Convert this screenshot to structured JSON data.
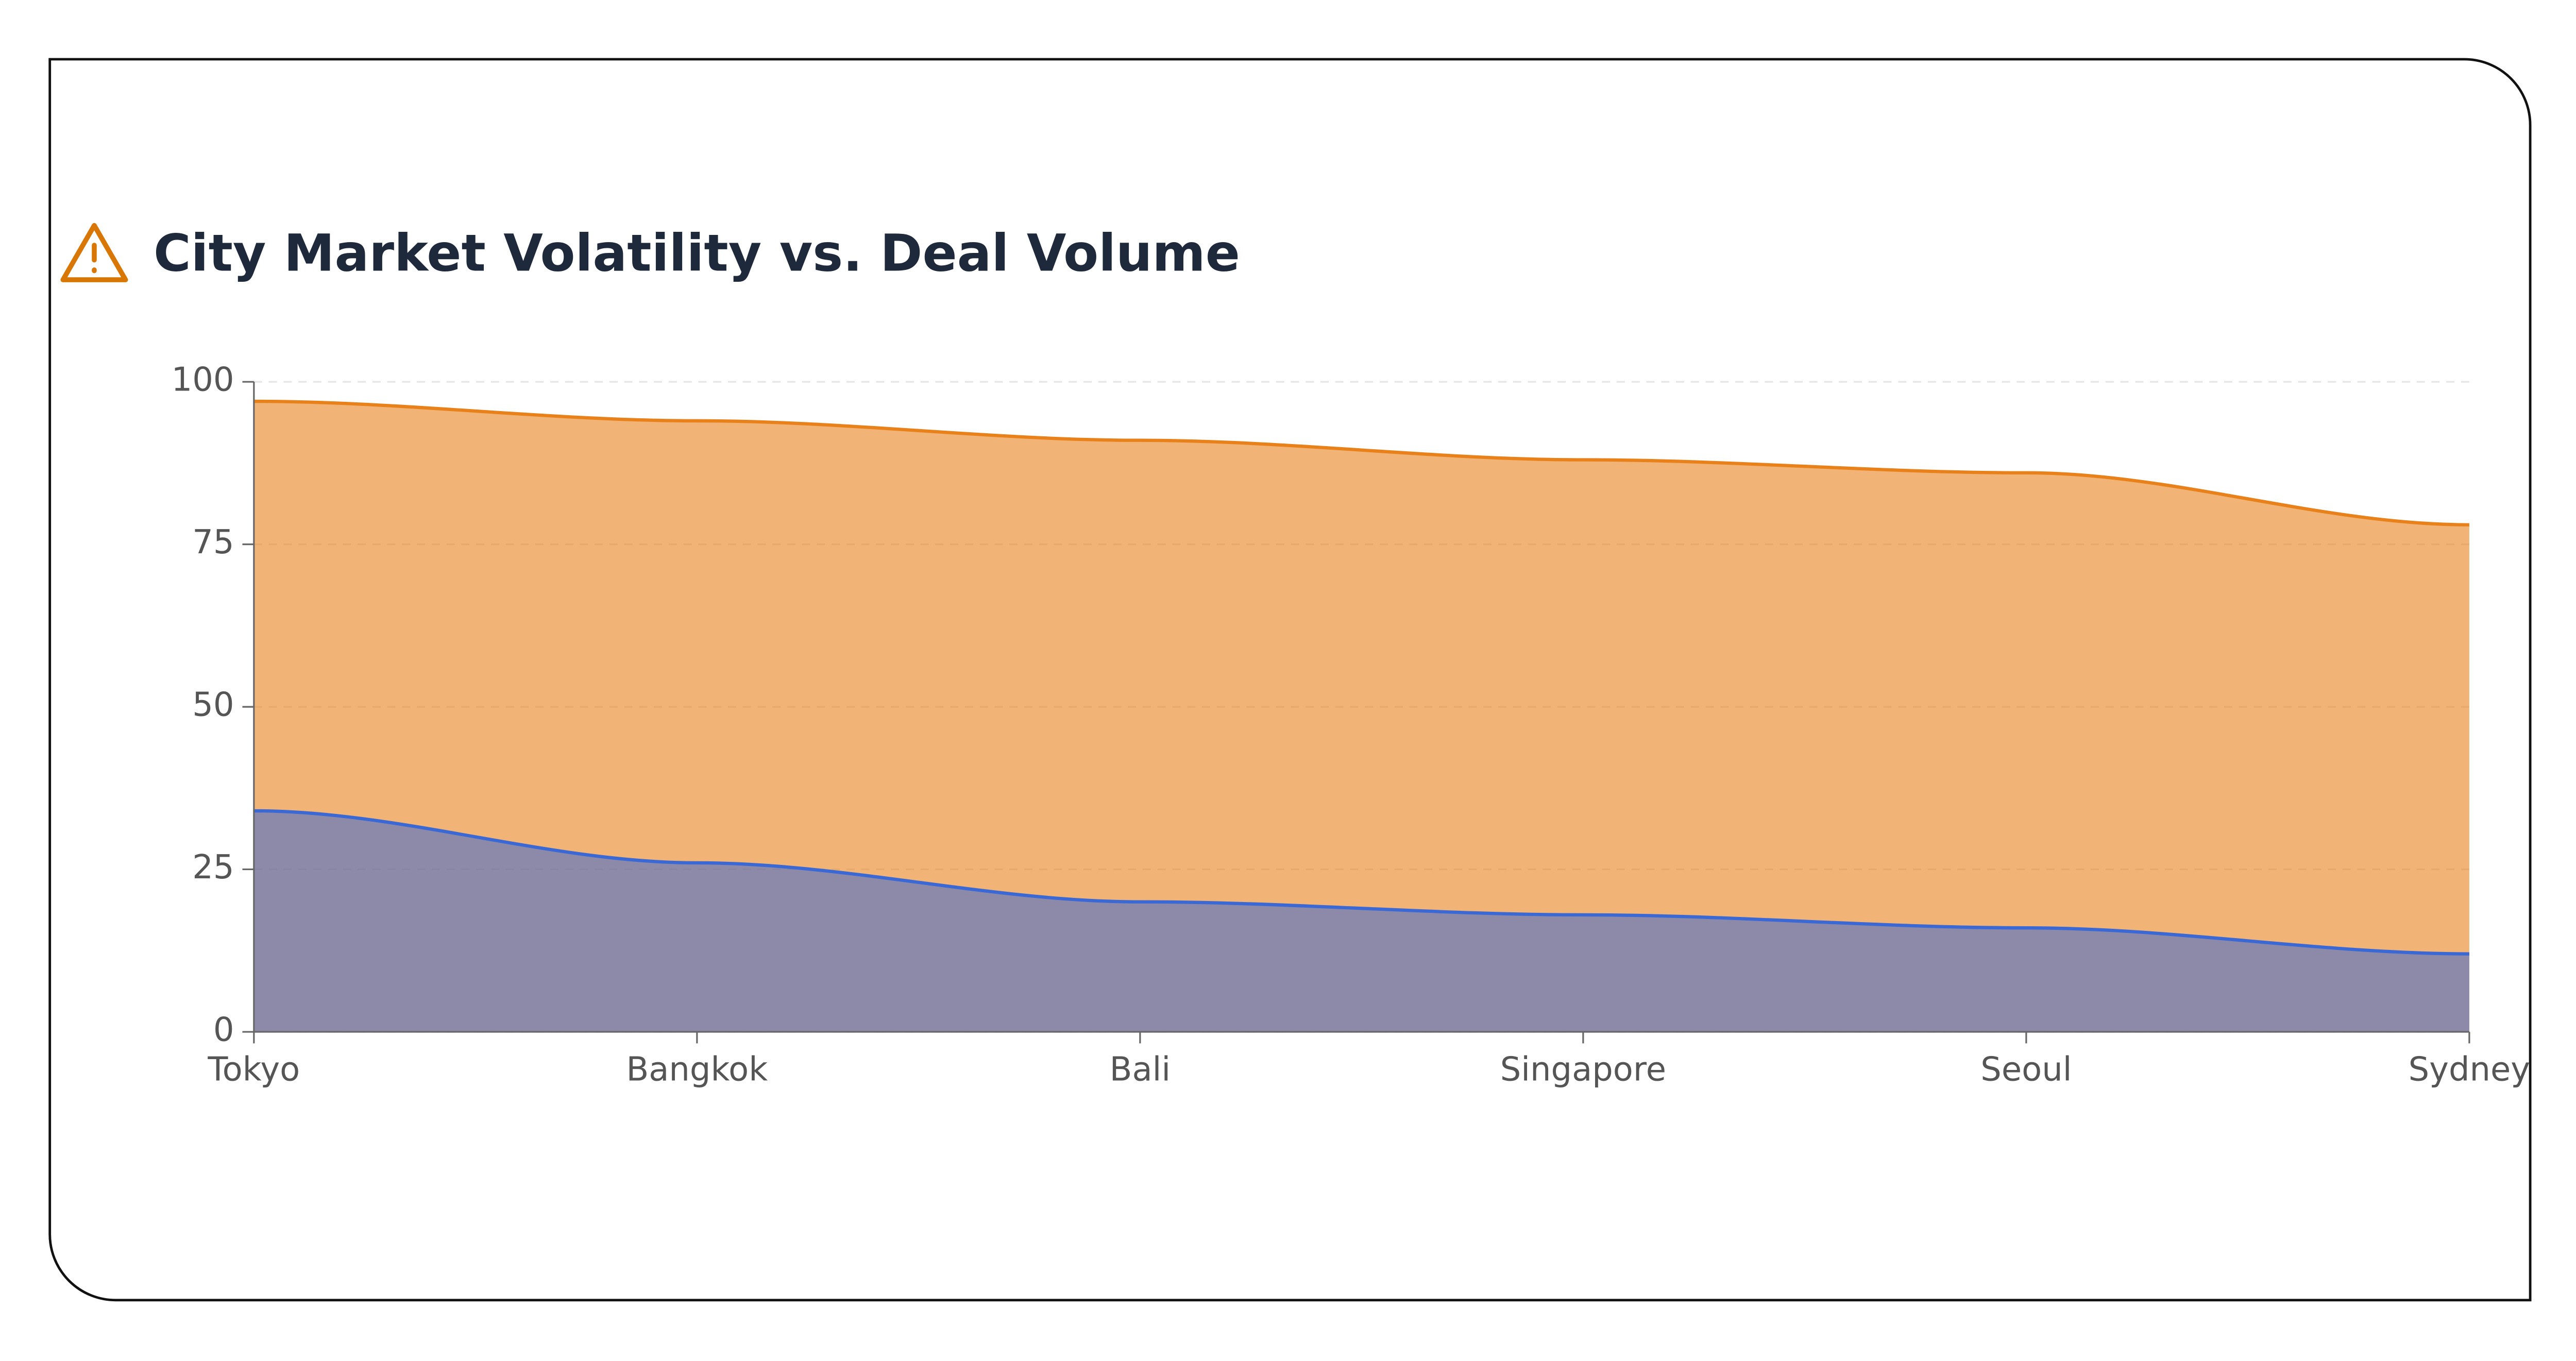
{
  "chart_data": {
    "type": "area",
    "title": "City Market Volatility vs. Deal Volume",
    "categories": [
      "Tokyo",
      "Bangkok",
      "Bali",
      "Singapore",
      "Seoul",
      "Sydney"
    ],
    "series": [
      {
        "color": "#e8811a",
        "values": [
          97,
          94,
          91,
          88,
          86,
          78
        ]
      },
      {
        "color": "#3a68d4",
        "values": [
          34,
          26,
          20,
          18,
          16,
          12
        ]
      }
    ],
    "ylim": [
      0,
      100
    ],
    "yticks": [
      0,
      25,
      50,
      75,
      100
    ],
    "grid": true
  }
}
